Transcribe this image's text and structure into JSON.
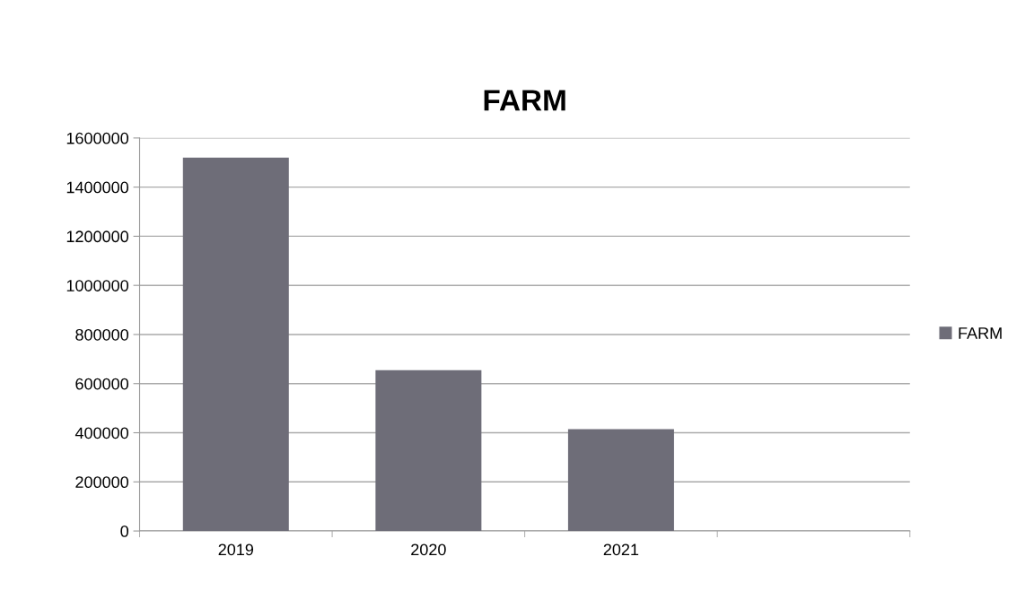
{
  "chart_data": {
    "type": "bar",
    "title": "FARM",
    "categories": [
      "2019",
      "2020",
      "2021",
      null
    ],
    "series": [
      {
        "name": "FARM",
        "color": "#6e6d78",
        "values": [
          1520000,
          655000,
          415000,
          null
        ]
      }
    ],
    "ylim": [
      0,
      1600000
    ],
    "yticks": [
      0,
      200000,
      400000,
      600000,
      800000,
      1000000,
      1200000,
      1400000,
      1600000
    ],
    "grid": "y",
    "legend": "right"
  }
}
